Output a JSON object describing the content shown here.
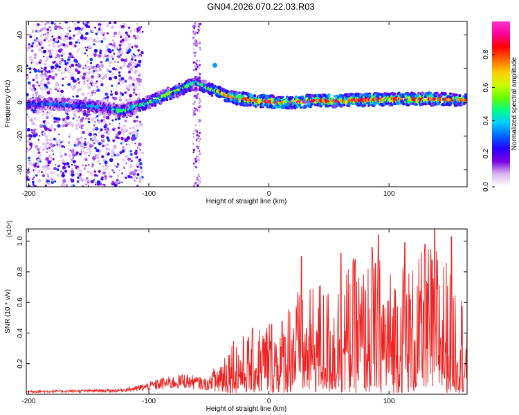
{
  "title": "GN04.2026.070.22.03.R03",
  "chart_data": [
    {
      "type": "heatmap",
      "xlabel": "Height of straight line (km)",
      "ylabel": "Frequency (Hz)",
      "xlim": [
        -202,
        165
      ],
      "ylim": [
        -50,
        48
      ],
      "xticks": [
        -200,
        -100,
        0,
        100
      ],
      "yticks": [
        -40,
        -20,
        0,
        20,
        40
      ],
      "xtick_labels": [
        "-200",
        "-100",
        "0",
        "100"
      ],
      "ytick_labels": [
        "-40",
        "-20",
        "0",
        "20",
        "40"
      ],
      "colorbar": {
        "label": "Normalized spectral amplitude",
        "range": [
          0.0,
          1.0
        ],
        "ticks": [
          0.0,
          0.2,
          0.4,
          0.6,
          0.8
        ],
        "tick_labels": [
          "0.0",
          "0.2",
          "0.4",
          "0.6",
          "0.8"
        ],
        "colors": [
          "#ffffff",
          "#d9b8f0",
          "#7a00e6",
          "#2a00ff",
          "#0066ff",
          "#00ccff",
          "#00ff88",
          "#66ff00",
          "#ccff00",
          "#ffcc00",
          "#ff6600",
          "#ff0000",
          "#ff0099",
          "#ff33cc"
        ]
      },
      "ridge": {
        "x": [
          -202,
          -190,
          -180,
          -170,
          -160,
          -150,
          -140,
          -130,
          -125,
          -120,
          -115,
          -110,
          -100,
          -90,
          -80,
          -70,
          -60,
          -50,
          -45,
          -40,
          -35,
          -30,
          -20,
          -10,
          0,
          10,
          20,
          40,
          60,
          80,
          100,
          120,
          140,
          160,
          165
        ],
        "y": [
          -1,
          -1,
          -1,
          -1.5,
          -2,
          -2,
          -3,
          -4,
          -5,
          -5,
          -4,
          -2,
          0,
          3,
          6,
          9,
          12,
          8,
          7,
          6,
          4,
          3,
          2,
          1,
          0.5,
          0,
          0,
          1,
          1,
          1.5,
          2,
          2,
          2,
          1.5,
          1.5
        ],
        "amplitude": [
          0.3,
          0.35,
          0.35,
          0.35,
          0.35,
          0.4,
          0.4,
          0.45,
          0.5,
          0.5,
          0.5,
          0.5,
          0.55,
          0.6,
          0.6,
          0.55,
          0.45,
          0.6,
          0.65,
          0.75,
          0.8,
          0.85,
          0.9,
          0.9,
          0.95,
          0.95,
          0.95,
          0.95,
          0.9,
          0.9,
          0.9,
          0.9,
          0.85,
          0.8,
          0.8
        ]
      },
      "background": {
        "scatter_x_range": [
          -202,
          -105
        ],
        "scatter_y_range": [
          -50,
          48
        ],
        "vertical_streak_x": -60,
        "note_blob_x": -45,
        "note_blob_y": 22
      }
    },
    {
      "type": "line",
      "xlabel": "Height of straight line (km)",
      "ylabel": "SNR (10 * v/v)",
      "y_multiplier": "(x10⁴)",
      "xlim": [
        -202,
        165
      ],
      "ylim": [
        0,
        1.08
      ],
      "xticks": [
        -200,
        -100,
        0,
        100
      ],
      "yticks": [
        0.2,
        0.4,
        0.6,
        0.8,
        1.0
      ],
      "xtick_labels": [
        "-200",
        "-100",
        "0",
        "100"
      ],
      "ytick_labels": [
        "0.2",
        "0.4",
        "0.6",
        "0.8",
        "1.0"
      ],
      "color": "#ee2222",
      "envelope": {
        "x": [
          -202,
          -180,
          -150,
          -125,
          -110,
          -100,
          -90,
          -80,
          -70,
          -60,
          -50,
          -40,
          -30,
          -20,
          -10,
          0,
          10,
          20,
          30,
          40,
          50,
          60,
          70,
          80,
          90,
          100,
          110,
          120,
          130,
          140,
          150,
          160,
          165
        ],
        "y": [
          0.03,
          0.03,
          0.035,
          0.04,
          0.06,
          0.08,
          0.11,
          0.12,
          0.14,
          0.12,
          0.1,
          0.28,
          0.4,
          0.38,
          0.45,
          0.52,
          0.5,
          0.75,
          0.6,
          0.78,
          0.7,
          0.8,
          0.88,
          0.85,
          0.95,
          0.82,
          0.9,
          0.85,
          0.95,
          1.05,
          0.85,
          0.72,
          0.5
        ]
      },
      "peaks": [
        {
          "x": 27,
          "y": 0.9
        },
        {
          "x": 60,
          "y": 0.92
        },
        {
          "x": 72,
          "y": 0.88
        },
        {
          "x": 86,
          "y": 0.96
        },
        {
          "x": 91,
          "y": 1.04
        },
        {
          "x": 113,
          "y": 0.99
        },
        {
          "x": 130,
          "y": 0.98
        },
        {
          "x": 138,
          "y": 1.08
        },
        {
          "x": 152,
          "y": 1.03
        }
      ]
    }
  ]
}
